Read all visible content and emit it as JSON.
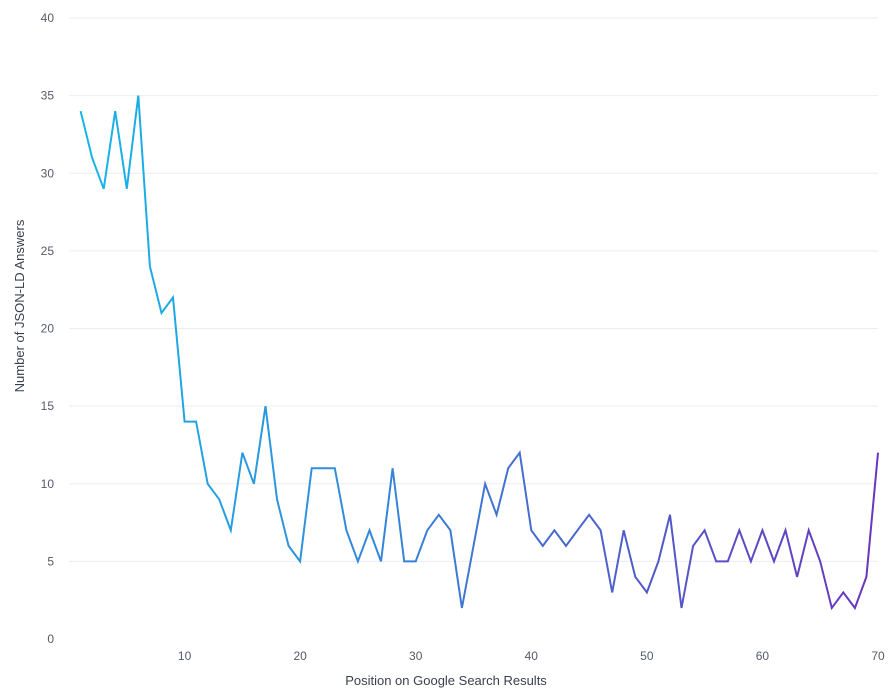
{
  "chart_data": {
    "type": "line",
    "xlabel": "Position on Google Search Results",
    "ylabel": "Number of JSON-LD Answers",
    "xlim": [
      0,
      70
    ],
    "ylim": [
      0,
      40
    ],
    "x_ticks": [
      10,
      20,
      30,
      40,
      50,
      60,
      70
    ],
    "y_ticks": [
      0,
      5,
      10,
      15,
      20,
      25,
      30,
      35,
      40
    ],
    "grid": true,
    "legend": "none",
    "line_gradient": [
      "#16b6e8",
      "#6a35bd"
    ],
    "series": [
      {
        "x": [
          1,
          2,
          3,
          4,
          5,
          6,
          7,
          8,
          9,
          10,
          11,
          12,
          13,
          14,
          15,
          16,
          17,
          18,
          19,
          20,
          21,
          22,
          23,
          24,
          25,
          26,
          27,
          28,
          29,
          30,
          31,
          32,
          33,
          34,
          35,
          36,
          37,
          38,
          39,
          40,
          41,
          42,
          43,
          44,
          45,
          46,
          47,
          48,
          49,
          50,
          51,
          52,
          53,
          54,
          55,
          56,
          57,
          58,
          59,
          60,
          61,
          62,
          63,
          64,
          65,
          66,
          67,
          68,
          69,
          70
        ],
        "values": [
          34,
          31,
          29,
          34,
          29,
          35,
          24,
          21,
          22,
          14,
          14,
          10,
          9,
          7,
          12,
          10,
          15,
          9,
          6,
          5,
          11,
          11,
          11,
          7,
          5,
          7,
          5,
          11,
          5,
          5,
          7,
          8,
          7,
          2,
          6,
          10,
          8,
          11,
          12,
          7,
          6,
          7,
          6,
          7,
          8,
          7,
          3,
          7,
          4,
          3,
          5,
          8,
          2,
          6,
          7,
          5,
          5,
          7,
          5,
          7,
          5,
          7,
          4,
          7,
          5,
          2,
          3,
          2,
          4,
          12
        ]
      }
    ]
  }
}
